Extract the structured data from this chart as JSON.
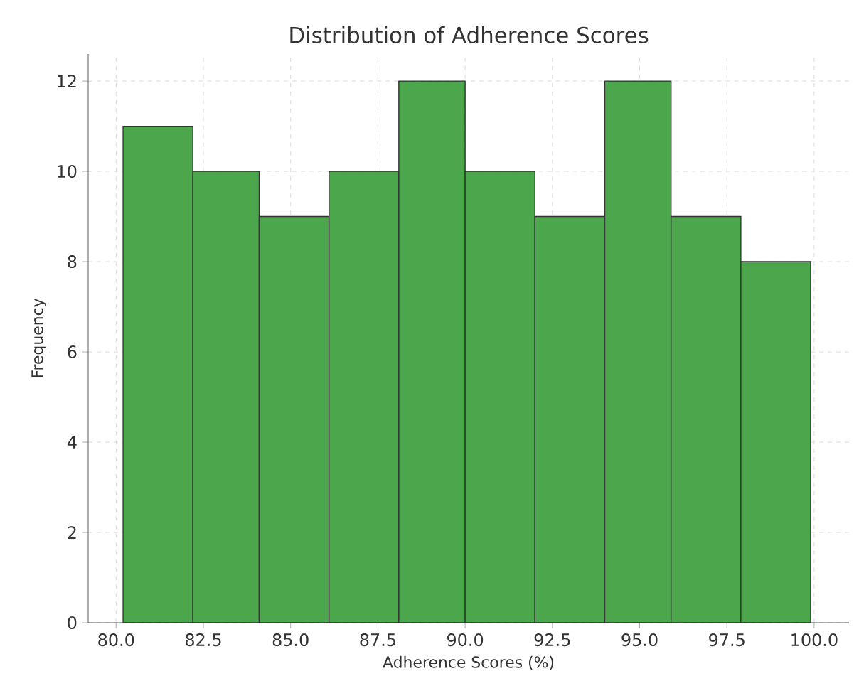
{
  "chart_data": {
    "type": "histogram",
    "title": "Distribution of Adherence Scores",
    "xlabel": "Adherence Scores (%)",
    "ylabel": "Frequency",
    "bins": [
      80.2,
      82.2,
      84.1,
      86.1,
      88.1,
      90.0,
      92.0,
      94.0,
      95.9,
      97.9,
      99.9
    ],
    "values": [
      11,
      10,
      9,
      10,
      12,
      10,
      9,
      12,
      9,
      8
    ],
    "color": "#4ca64c",
    "xlim": [
      79.2,
      101.0
    ],
    "ylim": [
      0,
      12.6
    ],
    "xticks": [
      {
        "value": 80,
        "label": "80.0"
      },
      {
        "value": 82.5,
        "label": "82.5"
      },
      {
        "value": 85,
        "label": "85.0"
      },
      {
        "value": 87.5,
        "label": "87.5"
      },
      {
        "value": 90,
        "label": "90.0"
      },
      {
        "value": 92.5,
        "label": "92.5"
      },
      {
        "value": 95,
        "label": "95.0"
      },
      {
        "value": 97.5,
        "label": "97.5"
      },
      {
        "value": 100,
        "label": "100.0"
      }
    ],
    "yticks": [
      0,
      2,
      4,
      6,
      8,
      10,
      12
    ],
    "grid": true
  }
}
